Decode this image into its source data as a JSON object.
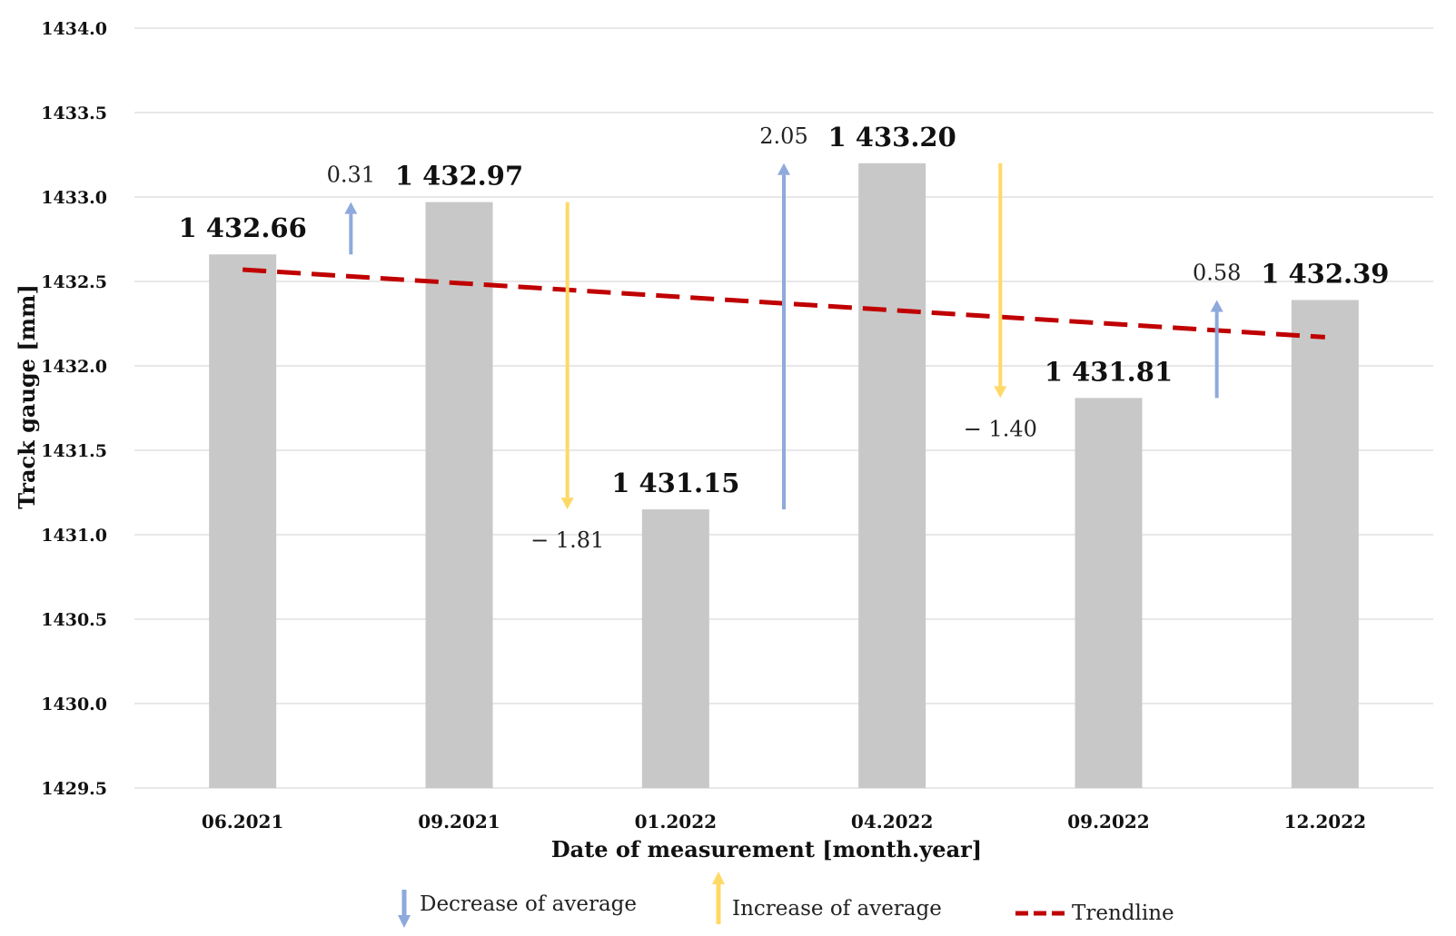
{
  "chart_data": {
    "type": "bar",
    "title": "",
    "xlabel": "Date of measurement [month.year]",
    "ylabel": "Track gauge [mm]",
    "ylim": [
      1429.5,
      1434.0
    ],
    "yticks": [
      "1434.0",
      "1433.5",
      "1433.0",
      "1432.5",
      "1432.0",
      "1431.5",
      "1431.0",
      "1430.5",
      "1430.0",
      "1429.5"
    ],
    "ytick_values": [
      1434.0,
      1433.5,
      1433.0,
      1432.5,
      1432.0,
      1431.5,
      1431.0,
      1430.5,
      1430.0,
      1429.5
    ],
    "categories": [
      "06.2021",
      "09.2021",
      "01.2022",
      "04.2022",
      "09.2022",
      "12.2022"
    ],
    "values": [
      1432.66,
      1432.97,
      1431.15,
      1433.2,
      1431.81,
      1432.39
    ],
    "value_labels": [
      "1 432.66",
      "1 432.97",
      "1 431.15",
      "1 433.20",
      "1 431.81",
      "1 432.39"
    ],
    "grid": true,
    "changes": [
      {
        "from": 0,
        "to": 1,
        "label": "0.31",
        "kind": "blue"
      },
      {
        "from": 1,
        "to": 2,
        "label": "− 1.81",
        "kind": "yellow"
      },
      {
        "from": 2,
        "to": 3,
        "label": "2.05",
        "kind": "blue"
      },
      {
        "from": 3,
        "to": 4,
        "label": "− 1.40",
        "kind": "yellow"
      },
      {
        "from": 4,
        "to": 5,
        "label": "0.58",
        "kind": "blue"
      }
    ],
    "trendline": {
      "start": 1432.57,
      "end": 1432.17
    },
    "legend": {
      "decrease_label": "Decrease of average",
      "increase_label": "Increase of average",
      "trend_label": "Trendline",
      "placement": "bottom"
    },
    "colors": {
      "bar": "#c8c8c8",
      "grid": "#d9d9d9",
      "blue_arrow": "#8ea9db",
      "yellow_arrow": "#ffd966",
      "trendline": "#c00000"
    }
  }
}
